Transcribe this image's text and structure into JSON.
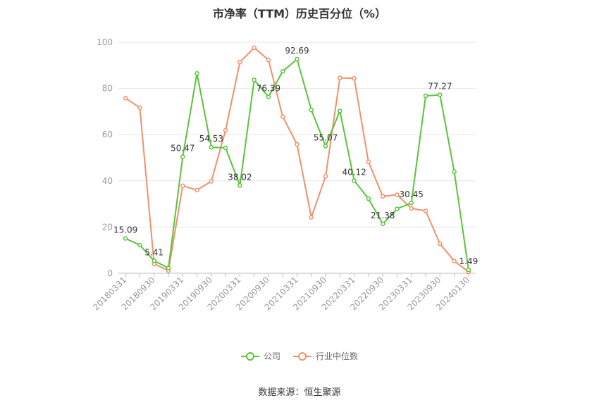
{
  "chart_data": {
    "type": "line",
    "title": "市净率（TTM）历史百分位（%）",
    "x_tick_labels": [
      "20180331",
      "20180930",
      "20190331",
      "20190930",
      "20200331",
      "20200930",
      "20210331",
      "20210930",
      "20220331",
      "20220930",
      "20230331",
      "20230930",
      "20240130"
    ],
    "x": [
      "20180331",
      "20180630",
      "20180930",
      "20181231",
      "20190331",
      "20190630",
      "20190930",
      "20191231",
      "20200331",
      "20200630",
      "20200930",
      "20201231",
      "20210331",
      "20210630",
      "20210930",
      "20211231",
      "20220331",
      "20220630",
      "20220930",
      "20221231",
      "20230331",
      "20230630",
      "20230930",
      "20231231",
      "20240130"
    ],
    "ylim": [
      0,
      100
    ],
    "y_ticks": [
      0,
      20,
      40,
      60,
      80,
      100
    ],
    "grid": true,
    "legend_position": "bottom",
    "series": [
      {
        "name": "公司",
        "color": "#5ac43a",
        "values": [
          15.09,
          12.2,
          5.41,
          2.3,
          50.47,
          86.5,
          54.53,
          54.3,
          38.02,
          83.7,
          76.39,
          87.4,
          92.69,
          70.7,
          55.07,
          70.3,
          40.12,
          32.3,
          21.38,
          27.9,
          30.45,
          76.8,
          77.27,
          44.0,
          1.49
        ],
        "labels": [
          "15.09",
          "",
          "5.41",
          "",
          "50.47",
          "",
          "54.53",
          "",
          "38.02",
          "",
          "76.39",
          "",
          "92.69",
          "",
          "55.07",
          "",
          "40.12",
          "",
          "21.38",
          "",
          "30.45",
          "",
          "77.27",
          "",
          "1.49"
        ]
      },
      {
        "name": "行业中位数",
        "color": "#f0916a",
        "values": [
          75.8,
          71.7,
          4.1,
          1.2,
          37.9,
          36.0,
          39.8,
          61.9,
          91.4,
          97.6,
          92.4,
          67.8,
          55.8,
          24.2,
          42.0,
          84.6,
          84.4,
          48.2,
          33.3,
          34.0,
          28.1,
          27.0,
          12.8,
          5.3,
          0.6
        ]
      }
    ]
  },
  "legend": {
    "company": "公司",
    "industry": "行业中位数"
  },
  "source": "数据来源：恒生聚源"
}
